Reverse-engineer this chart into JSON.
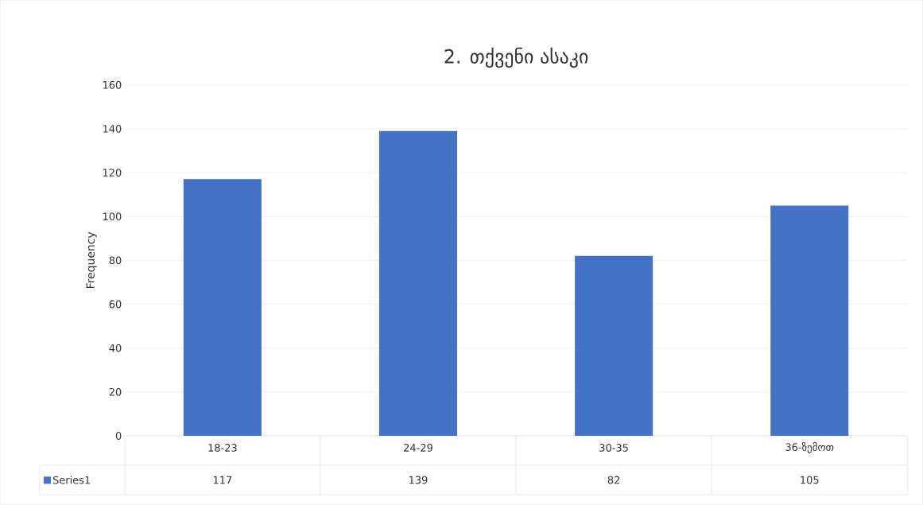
{
  "chart_data": {
    "type": "bar",
    "title": "2. თქვენი ასაკი",
    "ylabel": "Frequency",
    "categories": [
      "18-23",
      "24-29",
      "30-35",
      "36-ზემოთ"
    ],
    "series": [
      {
        "name": "Series1",
        "color": "#4472c4",
        "values": [
          117,
          139,
          82,
          105
        ]
      }
    ],
    "ylim": [
      0,
      160
    ],
    "yticks": [
      0,
      20,
      40,
      60,
      80,
      100,
      120,
      140,
      160
    ],
    "grid": "y",
    "legend": "bottom",
    "data_labels": true
  }
}
